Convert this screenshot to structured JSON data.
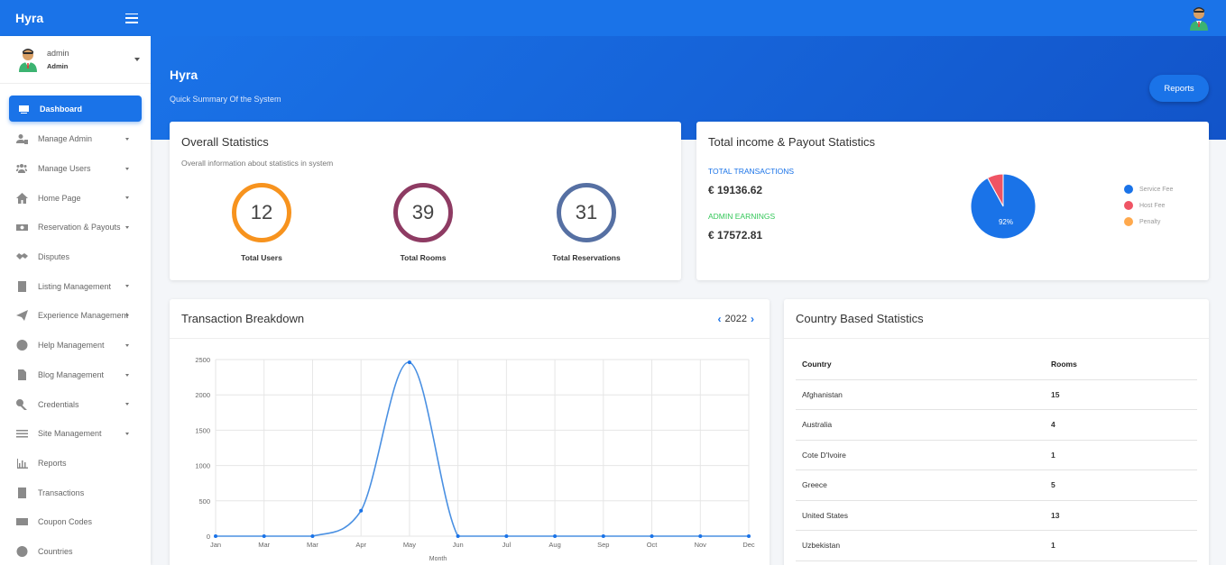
{
  "app": {
    "brand": "Hyra"
  },
  "user": {
    "name": "admin",
    "role": "Admin"
  },
  "sidebar": {
    "items": [
      {
        "label": "Dashboard",
        "icon": "dashboard-icon",
        "active": true,
        "has_caret": false
      },
      {
        "label": "Manage Admin",
        "icon": "user-lock-icon",
        "has_caret": true
      },
      {
        "label": "Manage Users",
        "icon": "users-icon",
        "has_caret": true
      },
      {
        "label": "Home Page",
        "icon": "home-icon",
        "has_caret": true
      },
      {
        "label": "Reservation & Payouts",
        "icon": "money-icon",
        "has_caret": true
      },
      {
        "label": "Disputes",
        "icon": "handshake-icon",
        "has_caret": false
      },
      {
        "label": "Listing Management",
        "icon": "building-icon",
        "has_caret": true
      },
      {
        "label": "Experience Management",
        "icon": "paper-plane-icon",
        "has_caret": true
      },
      {
        "label": "Help Management",
        "icon": "question-circle-icon",
        "has_caret": true
      },
      {
        "label": "Blog Management",
        "icon": "blog-icon",
        "has_caret": true
      },
      {
        "label": "Credentials",
        "icon": "key-icon",
        "has_caret": true
      },
      {
        "label": "Site Management",
        "icon": "sliders-icon",
        "has_caret": true
      },
      {
        "label": "Reports",
        "icon": "bar-chart-icon",
        "has_caret": false
      },
      {
        "label": "Transactions",
        "icon": "file-icon",
        "has_caret": false
      },
      {
        "label": "Coupon Codes",
        "icon": "coupon-icon",
        "has_caret": false
      },
      {
        "label": "Countries",
        "icon": "globe-icon",
        "has_caret": false
      }
    ]
  },
  "hero": {
    "title": "Hyra",
    "subtitle": "Quick Summary Of the System",
    "reports_button": "Reports"
  },
  "overall": {
    "title": "Overall Statistics",
    "subtitle": "Overall information about statistics in system",
    "stats": [
      {
        "value": "12",
        "label": "Total Users",
        "color": "#f7931e"
      },
      {
        "value": "39",
        "label": "Total Rooms",
        "color": "#8e3b63"
      },
      {
        "value": "31",
        "label": "Total Reservations",
        "color": "#5670a3"
      }
    ]
  },
  "income": {
    "title": "Total income & Payout Statistics",
    "total_transactions_label": "TOTAL TRANSACTIONS",
    "total_transactions_value": "€ 19136.62",
    "admin_earnings_label": "ADMIN EARNINGS",
    "admin_earnings_value": "€ 17572.81",
    "pie_label": "92%",
    "legend": [
      {
        "name": "Service Fee",
        "color": "#1a73e8"
      },
      {
        "name": "Host Fee",
        "color": "#ef5464"
      },
      {
        "name": "Penalty",
        "color": "#ffa94d"
      }
    ]
  },
  "transactions": {
    "title": "Transaction Breakdown",
    "year": "2022"
  },
  "country": {
    "title": "Country Based Statistics",
    "headers": [
      "Country",
      "Rooms"
    ],
    "rows": [
      [
        "Afghanistan",
        "15"
      ],
      [
        "Australia",
        "4"
      ],
      [
        "Cote D'Ivoire",
        "1"
      ],
      [
        "Greece",
        "5"
      ],
      [
        "United States",
        "13"
      ],
      [
        "Uzbekistan",
        "1"
      ]
    ]
  },
  "chart_data": [
    {
      "type": "pie",
      "categories": [
        "Service Fee",
        "Host Fee",
        "Penalty"
      ],
      "values": [
        92,
        8,
        0
      ],
      "labels": [
        "92%"
      ]
    },
    {
      "type": "line",
      "categories": [
        "Jan",
        "Mar",
        "Mar",
        "Apr",
        "May",
        "Jun",
        "Jul",
        "Aug",
        "Sep",
        "Oct",
        "Nov",
        "Dec"
      ],
      "series": [
        {
          "values": [
            0,
            0,
            0,
            360,
            2460,
            0,
            0,
            0,
            0,
            0,
            0,
            0
          ]
        }
      ],
      "xlabel": "Month",
      "ylabel": "",
      "ylim": [
        0,
        2500
      ],
      "yticks": [
        0,
        500,
        1000,
        1500,
        2000,
        2500
      ],
      "grid": true,
      "color": "#4a90e2"
    }
  ]
}
